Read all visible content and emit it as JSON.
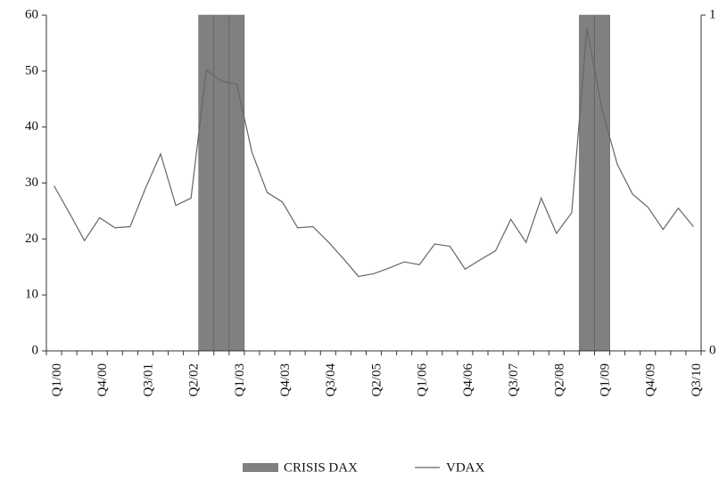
{
  "chart_data": {
    "type": "bar-line",
    "categories": [
      "Q1/00",
      null,
      null,
      "Q4/00",
      null,
      null,
      "Q3/01",
      null,
      null,
      "Q2/02",
      null,
      null,
      "Q1/03",
      null,
      null,
      "Q4/03",
      null,
      null,
      "Q3/04",
      null,
      null,
      "Q2/05",
      null,
      null,
      "Q1/06",
      null,
      null,
      "Q4/06",
      null,
      null,
      "Q3/07",
      null,
      null,
      "Q2/08",
      null,
      null,
      "Q1/09",
      null,
      null,
      "Q4/09",
      null,
      null,
      "Q3/10"
    ],
    "series": [
      {
        "name": "CRISIS DAX",
        "type": "bar",
        "axis": "y2",
        "color": "#808080",
        "values": [
          0,
          0,
          0,
          0,
          0,
          0,
          0,
          0,
          0,
          0,
          1,
          1,
          1,
          0,
          0,
          0,
          0,
          0,
          0,
          0,
          0,
          0,
          0,
          0,
          0,
          0,
          0,
          0,
          0,
          0,
          0,
          0,
          0,
          0,
          0,
          1,
          1,
          0,
          0,
          0,
          0,
          0,
          0
        ]
      },
      {
        "name": "VDAX",
        "type": "line",
        "color": "#666666",
        "values": [
          29.5,
          24.7,
          19.7,
          23.8,
          22.0,
          22.2,
          29.0,
          35.2,
          26.0,
          27.3,
          50.2,
          48.2,
          47.7,
          35.5,
          28.3,
          26.6,
          22.0,
          22.2,
          19.5,
          16.5,
          13.3,
          13.8,
          14.8,
          15.9,
          15.4,
          19.1,
          18.7,
          14.6,
          16.3,
          17.9,
          23.5,
          19.4,
          27.3,
          21.0,
          24.7,
          57.7,
          43.0,
          33.3,
          28.0,
          25.7,
          21.7,
          25.5,
          22.2
        ]
      }
    ],
    "ylim": [
      0,
      60
    ],
    "yticks": [
      0,
      10,
      20,
      30,
      40,
      50,
      60
    ],
    "y2lim": [
      0,
      1
    ],
    "y2ticks": [
      0,
      1
    ],
    "legend": "bottom"
  }
}
